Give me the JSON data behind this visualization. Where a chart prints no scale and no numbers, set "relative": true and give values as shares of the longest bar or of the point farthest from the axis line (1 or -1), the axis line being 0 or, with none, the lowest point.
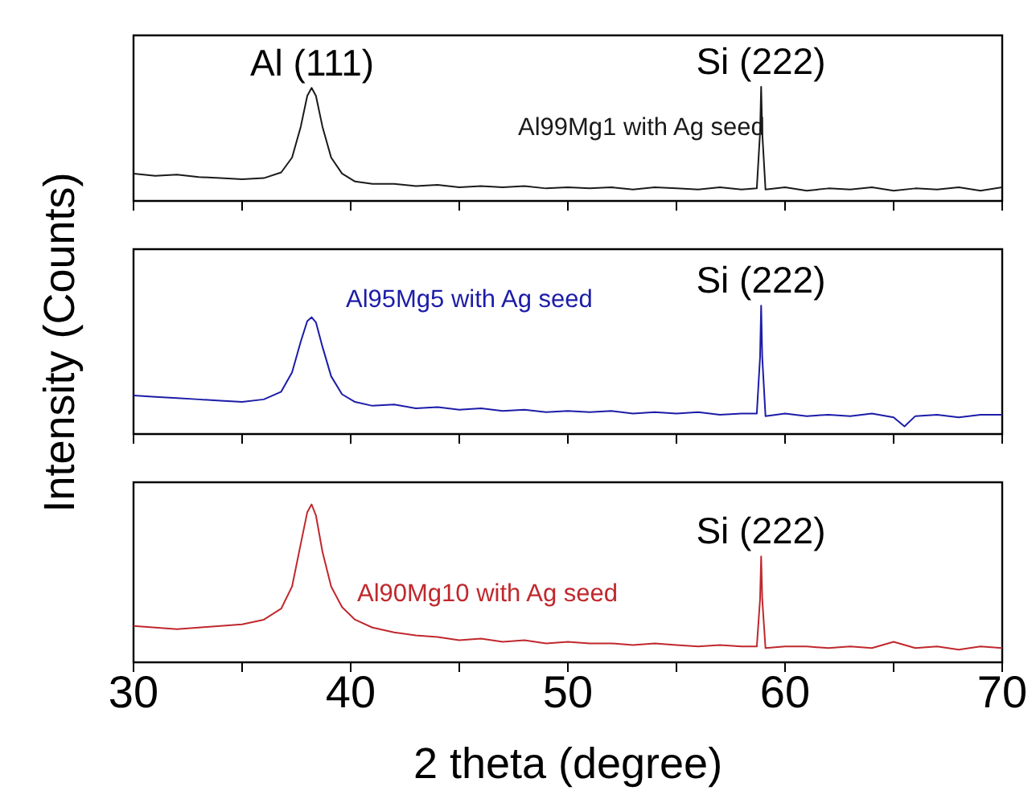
{
  "chart_data": [
    {
      "type": "line",
      "relative": true,
      "xlim": [
        30,
        70
      ],
      "xticks": [
        30,
        {
          "value": 35,
          "label": null
        },
        40,
        {
          "value": 45,
          "label": null
        },
        50,
        {
          "value": 55,
          "label": null
        },
        60,
        {
          "value": 65,
          "label": null
        },
        70
      ],
      "tick_labels": false,
      "marker": "none",
      "annotations": [
        "Al (111)",
        "Si (222)"
      ],
      "series": [
        {
          "name": "Al99Mg1 with Ag seed",
          "color": "#1a1a1a",
          "x": [
            30,
            31,
            32,
            33,
            34,
            35,
            36,
            36.8,
            37.3,
            37.7,
            38.0,
            38.2,
            38.4,
            38.7,
            39.1,
            39.6,
            40.2,
            41,
            42,
            43,
            44,
            45,
            46,
            47,
            48,
            49,
            50,
            51,
            52,
            53,
            54,
            55,
            56,
            57,
            58,
            58.7,
            58.85,
            58.9,
            58.95,
            59.1,
            60,
            61,
            62,
            63,
            64,
            65,
            66,
            67,
            68,
            69,
            70
          ],
          "values": [
            0.24,
            0.22,
            0.23,
            0.21,
            0.2,
            0.19,
            0.2,
            0.25,
            0.38,
            0.65,
            0.92,
            0.99,
            0.92,
            0.65,
            0.38,
            0.24,
            0.17,
            0.15,
            0.15,
            0.13,
            0.14,
            0.12,
            0.13,
            0.12,
            0.13,
            0.11,
            0.12,
            0.11,
            0.12,
            0.1,
            0.12,
            0.11,
            0.1,
            0.12,
            0.1,
            0.11,
            0.6,
            1.0,
            0.6,
            0.1,
            0.12,
            0.09,
            0.11,
            0.1,
            0.12,
            0.09,
            0.11,
            0.1,
            0.12,
            0.09,
            0.12
          ]
        }
      ]
    },
    {
      "type": "line",
      "relative": true,
      "xlim": [
        30,
        70
      ],
      "xticks": [
        30,
        {
          "value": 35,
          "label": null
        },
        40,
        {
          "value": 45,
          "label": null
        },
        50,
        {
          "value": 55,
          "label": null
        },
        60,
        {
          "value": 65,
          "label": null
        },
        70
      ],
      "tick_labels": false,
      "marker": "none",
      "ylabel": "Intensity (Counts)",
      "annotations": [
        "Si (222)"
      ],
      "series": [
        {
          "name": "Al95Mg5 with Ag seed",
          "color": "#1c1ca8",
          "x": [
            30,
            31,
            32,
            33,
            34,
            35,
            36,
            36.8,
            37.3,
            37.7,
            38.0,
            38.2,
            38.4,
            38.7,
            39.1,
            39.6,
            40.2,
            41,
            42,
            43,
            44,
            45,
            46,
            47,
            48,
            49,
            50,
            51,
            52,
            53,
            54,
            55,
            56,
            57,
            58,
            58.7,
            58.85,
            58.9,
            58.95,
            59.1,
            60,
            61,
            62,
            63,
            64,
            65,
            65.5,
            66,
            67,
            68,
            69,
            70
          ],
          "values": [
            0.3,
            0.29,
            0.28,
            0.27,
            0.26,
            0.25,
            0.27,
            0.33,
            0.48,
            0.72,
            0.88,
            0.91,
            0.87,
            0.68,
            0.45,
            0.31,
            0.25,
            0.22,
            0.23,
            0.2,
            0.21,
            0.19,
            0.2,
            0.18,
            0.19,
            0.17,
            0.18,
            0.17,
            0.18,
            0.16,
            0.17,
            0.16,
            0.17,
            0.15,
            0.16,
            0.16,
            0.6,
            1.0,
            0.6,
            0.14,
            0.16,
            0.14,
            0.15,
            0.14,
            0.16,
            0.13,
            0.06,
            0.14,
            0.15,
            0.13,
            0.15,
            0.15
          ]
        }
      ]
    },
    {
      "type": "line",
      "relative": true,
      "xlim": [
        30,
        70
      ],
      "xticks": [
        30,
        {
          "value": 35,
          "label": null
        },
        40,
        {
          "value": 45,
          "label": null
        },
        50,
        {
          "value": 55,
          "label": null
        },
        60,
        {
          "value": 65,
          "label": null
        },
        70
      ],
      "tick_labels": "x",
      "marker": "none",
      "xlabel": "2 theta (degree)",
      "annotations": [
        "Si (222)"
      ],
      "series": [
        {
          "name": "Al90Mg10 with Ag seed",
          "color": "#c0282d",
          "x": [
            30,
            31,
            32,
            33,
            34,
            35,
            36,
            36.8,
            37.3,
            37.7,
            38.0,
            38.2,
            38.4,
            38.7,
            39.1,
            39.6,
            40.2,
            41,
            42,
            43,
            44,
            45,
            46,
            47,
            48,
            49,
            50,
            51,
            52,
            53,
            54,
            55,
            56,
            57,
            58,
            58.7,
            58.85,
            58.9,
            58.95,
            59.1,
            60,
            61,
            62,
            63,
            64,
            65,
            66,
            67,
            68,
            69,
            70
          ],
          "values": [
            0.23,
            0.22,
            0.21,
            0.22,
            0.23,
            0.24,
            0.27,
            0.34,
            0.48,
            0.75,
            0.95,
            1.0,
            0.93,
            0.7,
            0.48,
            0.35,
            0.27,
            0.22,
            0.19,
            0.17,
            0.16,
            0.14,
            0.15,
            0.13,
            0.14,
            0.12,
            0.13,
            0.12,
            0.12,
            0.11,
            0.12,
            0.11,
            0.1,
            0.11,
            0.1,
            0.1,
            0.4,
            0.67,
            0.4,
            0.09,
            0.1,
            0.1,
            0.09,
            0.1,
            0.09,
            0.13,
            0.09,
            0.1,
            0.08,
            0.1,
            0.09
          ]
        }
      ]
    }
  ]
}
